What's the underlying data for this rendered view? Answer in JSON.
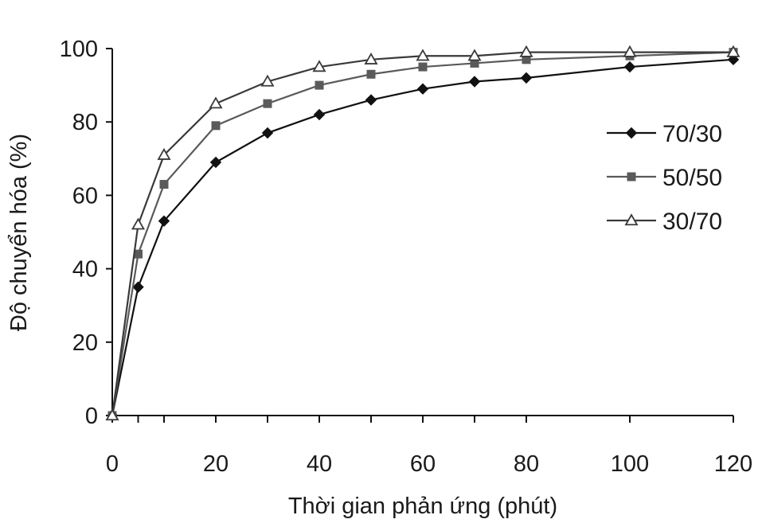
{
  "chart_data": {
    "type": "line",
    "title": "",
    "xlabel": "Thời gian phản ứng (phút)",
    "ylabel": "Độ chuyển hóa (%)",
    "xlim": [
      0,
      120
    ],
    "ylim": [
      0,
      100
    ],
    "xticks": [
      0,
      20,
      40,
      60,
      80,
      100,
      120
    ],
    "yticks": [
      0,
      20,
      40,
      60,
      80,
      100
    ],
    "grid": false,
    "legend_position": "right",
    "x": [
      0,
      5,
      10,
      20,
      30,
      40,
      50,
      60,
      70,
      80,
      100,
      120
    ],
    "series": [
      {
        "name": "70/30",
        "marker": "diamond",
        "color": "#111111",
        "values": [
          0,
          35,
          53,
          69,
          77,
          82,
          86,
          89,
          91,
          92,
          95,
          97
        ]
      },
      {
        "name": "50/50",
        "marker": "square",
        "color": "#5a5a5a",
        "values": [
          0,
          44,
          63,
          79,
          85,
          90,
          93,
          95,
          96,
          97,
          98,
          99
        ]
      },
      {
        "name": "30/70",
        "marker": "triangle-open",
        "color": "#3a3a3a",
        "values": [
          0,
          52,
          71,
          85,
          91,
          95,
          97,
          98,
          98,
          99,
          99,
          99
        ]
      }
    ]
  }
}
